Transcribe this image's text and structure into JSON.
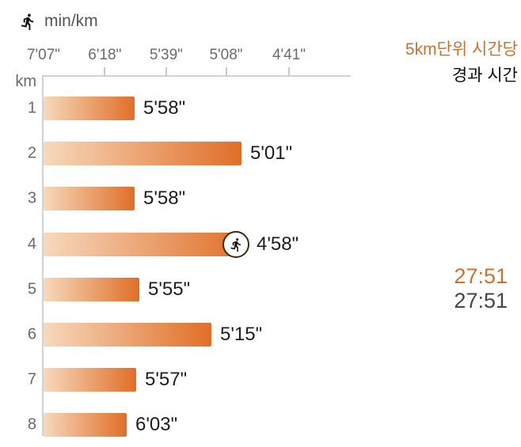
{
  "header": {
    "unit_label": "min/km"
  },
  "right_panel": {
    "mode_label": "5km단위 시간당",
    "elapsed_label": "경과 시간",
    "split_time": "27:51",
    "elapsed_time": "27:51"
  },
  "chart_data": {
    "type": "bar",
    "orientation": "horizontal",
    "title": "min/km",
    "axis_corner_label": "km",
    "x_axis": {
      "tick_labels": [
        "7'07\"",
        "6'18\"",
        "5'39\"",
        "5'08\"",
        "4'41\""
      ],
      "tick_pace_seconds": [
        427,
        378,
        339,
        308,
        281
      ],
      "scale": "linear-in-speed",
      "direction": "faster pace to the right"
    },
    "categories": [
      "1",
      "2",
      "3",
      "4",
      "5",
      "6",
      "7",
      "8"
    ],
    "values": [
      "5'58\"",
      "5'01\"",
      "5'58\"",
      "4'58\"",
      "5'55\"",
      "5'15\"",
      "5'57\"",
      "6'03\""
    ],
    "pace_seconds": [
      358,
      301,
      358,
      298,
      355,
      315,
      357,
      363
    ],
    "marker": {
      "km_index": 3,
      "icon": "runner-icon"
    },
    "colors": {
      "bar_gradient_start": "#f7d9bd",
      "bar_gradient_end": "#e06e27",
      "accent_text": "#c67331",
      "axis_line": "#d2d2d2",
      "tick_line": "#c9c9c9",
      "label_text": "#6a6a6a",
      "value_text": "#1d1d1d"
    }
  }
}
